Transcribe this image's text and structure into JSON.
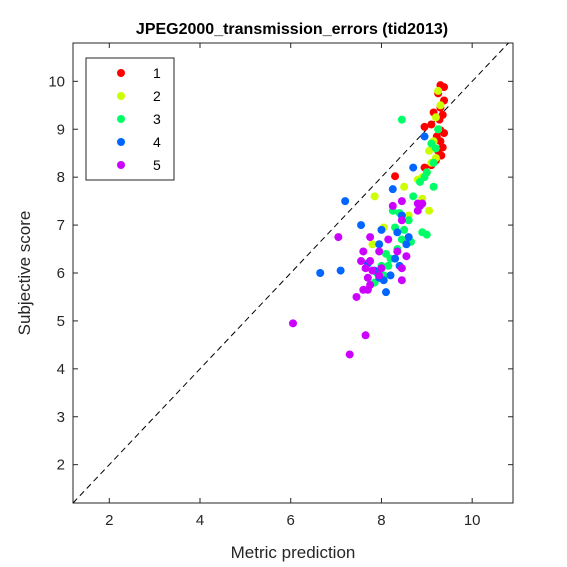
{
  "chart_data": {
    "type": "scatter",
    "title": "JPEG2000_transmission_errors (tid2013)",
    "xlabel": "Metric prediction",
    "ylabel": "Subjective score",
    "xlim": [
      1.2,
      10.9
    ],
    "ylim": [
      1.2,
      10.8
    ],
    "xticks": [
      2,
      4,
      6,
      8,
      10
    ],
    "yticks": [
      2,
      3,
      4,
      5,
      6,
      7,
      8,
      9,
      10
    ],
    "grid": false,
    "legend_position": "top-left",
    "reference_line": "y = x (dashed)",
    "series": [
      {
        "name": "1",
        "color": "#ff0000",
        "points": [
          [
            9.3,
            9.92
          ],
          [
            9.38,
            9.88
          ],
          [
            9.25,
            9.75
          ],
          [
            9.38,
            9.6
          ],
          [
            9.3,
            9.45
          ],
          [
            9.35,
            9.3
          ],
          [
            9.15,
            9.35
          ],
          [
            9.28,
            9.2
          ],
          [
            9.1,
            9.1
          ],
          [
            8.95,
            9.05
          ],
          [
            9.3,
            8.98
          ],
          [
            9.38,
            8.92
          ],
          [
            9.22,
            8.85
          ],
          [
            9.3,
            8.75
          ],
          [
            9.35,
            8.62
          ],
          [
            9.25,
            8.55
          ],
          [
            9.32,
            8.45
          ],
          [
            9.2,
            8.35
          ],
          [
            9.1,
            8.25
          ],
          [
            8.95,
            8.2
          ],
          [
            8.3,
            8.02
          ]
        ]
      },
      {
        "name": "2",
        "color": "#ccff00",
        "points": [
          [
            9.25,
            9.8
          ],
          [
            9.3,
            9.5
          ],
          [
            9.2,
            9.25
          ],
          [
            9.25,
            9.0
          ],
          [
            9.15,
            8.75
          ],
          [
            9.05,
            8.55
          ],
          [
            9.2,
            8.4
          ],
          [
            9.1,
            8.3
          ],
          [
            9.0,
            8.1
          ],
          [
            8.9,
            8.0
          ],
          [
            8.8,
            7.95
          ],
          [
            8.5,
            7.8
          ],
          [
            8.9,
            7.55
          ],
          [
            9.05,
            7.3
          ],
          [
            8.6,
            7.2
          ],
          [
            7.85,
            7.6
          ],
          [
            7.8,
            6.6
          ],
          [
            8.05,
            6.95
          ]
        ]
      },
      {
        "name": "3",
        "color": "#00ff66",
        "points": [
          [
            8.45,
            9.2
          ],
          [
            9.25,
            9.0
          ],
          [
            9.1,
            8.7
          ],
          [
            9.2,
            8.6
          ],
          [
            9.15,
            8.3
          ],
          [
            9.0,
            8.1
          ],
          [
            8.95,
            8.0
          ],
          [
            9.15,
            7.8
          ],
          [
            8.85,
            7.9
          ],
          [
            8.7,
            7.6
          ],
          [
            8.25,
            7.3
          ],
          [
            8.4,
            7.25
          ],
          [
            8.6,
            7.1
          ],
          [
            8.3,
            6.95
          ],
          [
            8.5,
            6.9
          ],
          [
            8.9,
            6.85
          ],
          [
            9.0,
            6.8
          ],
          [
            8.45,
            6.7
          ],
          [
            8.65,
            6.65
          ],
          [
            8.35,
            6.5
          ],
          [
            8.1,
            6.4
          ],
          [
            8.2,
            6.3
          ],
          [
            8.0,
            6.15
          ],
          [
            8.05,
            5.95
          ],
          [
            7.85,
            5.8
          ],
          [
            7.9,
            6.0
          ],
          [
            8.15,
            6.15
          ]
        ]
      },
      {
        "name": "4",
        "color": "#0066ff",
        "points": [
          [
            8.95,
            8.85
          ],
          [
            8.7,
            8.2
          ],
          [
            8.25,
            7.75
          ],
          [
            7.2,
            7.5
          ],
          [
            7.55,
            7.0
          ],
          [
            8.45,
            7.2
          ],
          [
            8.35,
            6.85
          ],
          [
            8.6,
            6.75
          ],
          [
            8.0,
            6.9
          ],
          [
            7.95,
            6.6
          ],
          [
            8.55,
            6.6
          ],
          [
            8.3,
            6.3
          ],
          [
            7.7,
            6.2
          ],
          [
            8.4,
            6.15
          ],
          [
            6.65,
            6.0
          ],
          [
            7.1,
            6.05
          ],
          [
            7.95,
            5.9
          ],
          [
            7.85,
            6.05
          ],
          [
            8.05,
            5.85
          ],
          [
            8.2,
            5.95
          ],
          [
            8.1,
            5.6
          ]
        ]
      },
      {
        "name": "5",
        "color": "#cc00ff",
        "points": [
          [
            8.8,
            7.45
          ],
          [
            8.85,
            7.4
          ],
          [
            8.8,
            7.3
          ],
          [
            8.9,
            7.45
          ],
          [
            8.45,
            7.5
          ],
          [
            8.25,
            7.4
          ],
          [
            8.45,
            7.1
          ],
          [
            8.15,
            6.7
          ],
          [
            7.75,
            6.75
          ],
          [
            7.05,
            6.75
          ],
          [
            7.95,
            6.45
          ],
          [
            8.35,
            6.45
          ],
          [
            8.55,
            6.35
          ],
          [
            7.6,
            6.45
          ],
          [
            7.55,
            6.25
          ],
          [
            7.75,
            6.25
          ],
          [
            7.65,
            6.1
          ],
          [
            7.8,
            6.05
          ],
          [
            8.0,
            6.1
          ],
          [
            8.45,
            6.1
          ],
          [
            7.7,
            5.9
          ],
          [
            7.95,
            5.95
          ],
          [
            8.45,
            5.85
          ],
          [
            7.75,
            5.75
          ],
          [
            7.6,
            5.65
          ],
          [
            7.7,
            5.65
          ],
          [
            7.45,
            5.5
          ],
          [
            6.05,
            4.95
          ],
          [
            7.65,
            4.7
          ],
          [
            7.3,
            4.3
          ]
        ]
      }
    ]
  }
}
